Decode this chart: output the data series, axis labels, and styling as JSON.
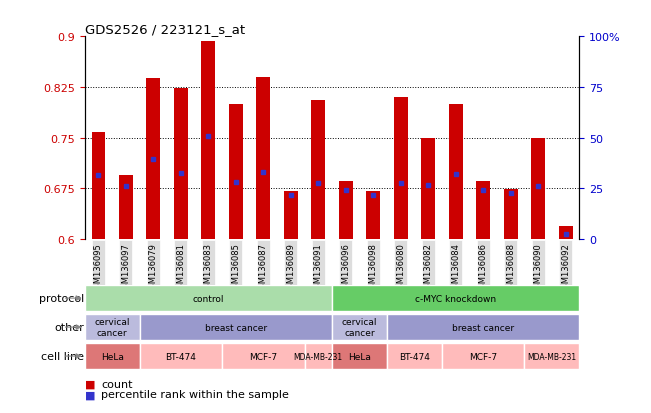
{
  "title": "GDS2526 / 223121_s_at",
  "samples": [
    "GSM136095",
    "GSM136097",
    "GSM136079",
    "GSM136081",
    "GSM136083",
    "GSM136085",
    "GSM136087",
    "GSM136089",
    "GSM136091",
    "GSM136096",
    "GSM136098",
    "GSM136080",
    "GSM136082",
    "GSM136084",
    "GSM136086",
    "GSM136088",
    "GSM136090",
    "GSM136092"
  ],
  "count_values": [
    0.758,
    0.695,
    0.838,
    0.824,
    0.893,
    0.8,
    0.84,
    0.671,
    0.806,
    0.686,
    0.671,
    0.81,
    0.75,
    0.8,
    0.686,
    0.674,
    0.75,
    0.62
  ],
  "percentile_values": [
    0.695,
    0.678,
    0.718,
    0.698,
    0.752,
    0.685,
    0.7,
    0.665,
    0.683,
    0.672,
    0.665,
    0.683,
    0.68,
    0.696,
    0.672,
    0.668,
    0.678,
    0.608
  ],
  "ymin": 0.6,
  "ymax": 0.9,
  "yticks": [
    0.6,
    0.675,
    0.75,
    0.825,
    0.9
  ],
  "ytick_labels": [
    "0.6",
    "0.675",
    "0.75",
    "0.825",
    "0.9"
  ],
  "right_ytick_labels": [
    "0",
    "25",
    "50",
    "75",
    "100%"
  ],
  "bar_color": "#cc0000",
  "dot_color": "#3333cc",
  "bar_bottom": 0.6,
  "protocol_groups": [
    {
      "label": "control",
      "start": 0,
      "end": 9,
      "color": "#aaddaa"
    },
    {
      "label": "c-MYC knockdown",
      "start": 9,
      "end": 18,
      "color": "#66cc66"
    }
  ],
  "other_groups": [
    {
      "label": "cervical\ncancer",
      "start": 0,
      "end": 2,
      "color": "#bbbbdd"
    },
    {
      "label": "breast cancer",
      "start": 2,
      "end": 9,
      "color": "#9999cc"
    },
    {
      "label": "cervical\ncancer",
      "start": 9,
      "end": 11,
      "color": "#bbbbdd"
    },
    {
      "label": "breast cancer",
      "start": 11,
      "end": 18,
      "color": "#9999cc"
    }
  ],
  "cell_line_groups": [
    {
      "label": "HeLa",
      "start": 0,
      "end": 2,
      "color": "#dd7777"
    },
    {
      "label": "BT-474",
      "start": 2,
      "end": 5,
      "color": "#ffbbbb"
    },
    {
      "label": "MCF-7",
      "start": 5,
      "end": 8,
      "color": "#ffbbbb"
    },
    {
      "label": "MDA-MB-231",
      "start": 8,
      "end": 9,
      "color": "#ffbbbb"
    },
    {
      "label": "HeLa",
      "start": 9,
      "end": 11,
      "color": "#dd7777"
    },
    {
      "label": "BT-474",
      "start": 11,
      "end": 13,
      "color": "#ffbbbb"
    },
    {
      "label": "MCF-7",
      "start": 13,
      "end": 16,
      "color": "#ffbbbb"
    },
    {
      "label": "MDA-MB-231",
      "start": 16,
      "end": 18,
      "color": "#ffbbbb"
    }
  ],
  "row_labels": [
    "protocol",
    "other",
    "cell line"
  ],
  "legend_count_label": "count",
  "legend_pct_label": "percentile rank within the sample",
  "left_tick_color": "#cc0000",
  "right_tick_color": "#0000cc"
}
